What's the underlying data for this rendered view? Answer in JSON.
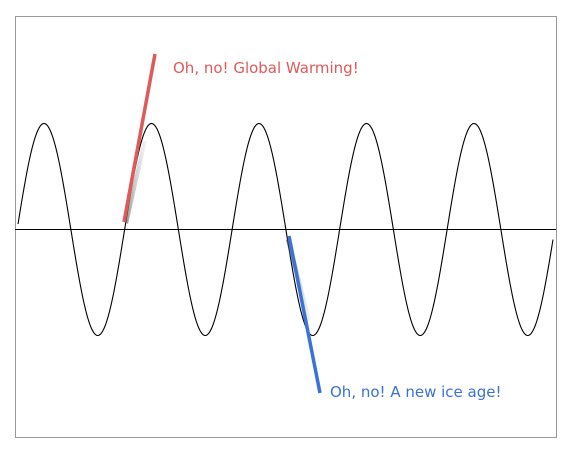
{
  "annotations": {
    "warming": {
      "text": "Oh, no! Global Warming!",
      "color": "#e05a5a"
    },
    "ice_age": {
      "text": "Oh, no! A new ice age!",
      "color": "#3a73d6"
    }
  },
  "wave": {
    "type": "sine",
    "cycles_visible": 5,
    "stroke_color": "#000000"
  },
  "frame": {
    "border_color": "#999999",
    "axis_color": "#000000"
  }
}
